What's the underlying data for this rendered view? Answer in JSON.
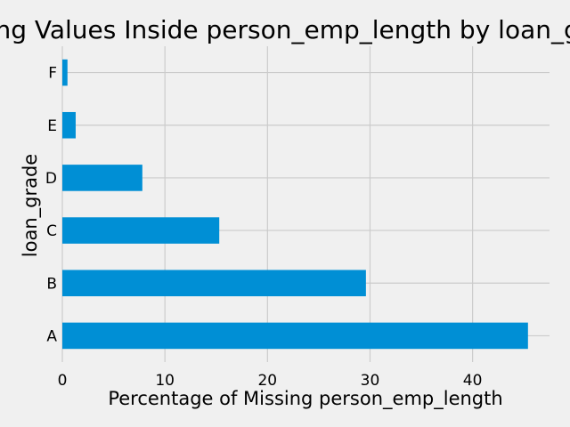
{
  "chart_data": {
    "type": "bar",
    "orientation": "horizontal",
    "title": "Missing Values Inside person_emp_length by loan_grade",
    "xlabel": "Percentage of Missing person_emp_length",
    "ylabel": "loan_grade",
    "categories": [
      "A",
      "B",
      "C",
      "D",
      "E",
      "F"
    ],
    "values": [
      45.4,
      29.6,
      15.3,
      7.8,
      1.3,
      0.5
    ],
    "xlim": [
      0,
      47.5
    ],
    "xticks": [
      0,
      10,
      20,
      30,
      40
    ],
    "grid": true,
    "colors": {
      "bar": "#008fd5",
      "background": "#f0f0f0",
      "grid": "#cbcbcb"
    }
  }
}
